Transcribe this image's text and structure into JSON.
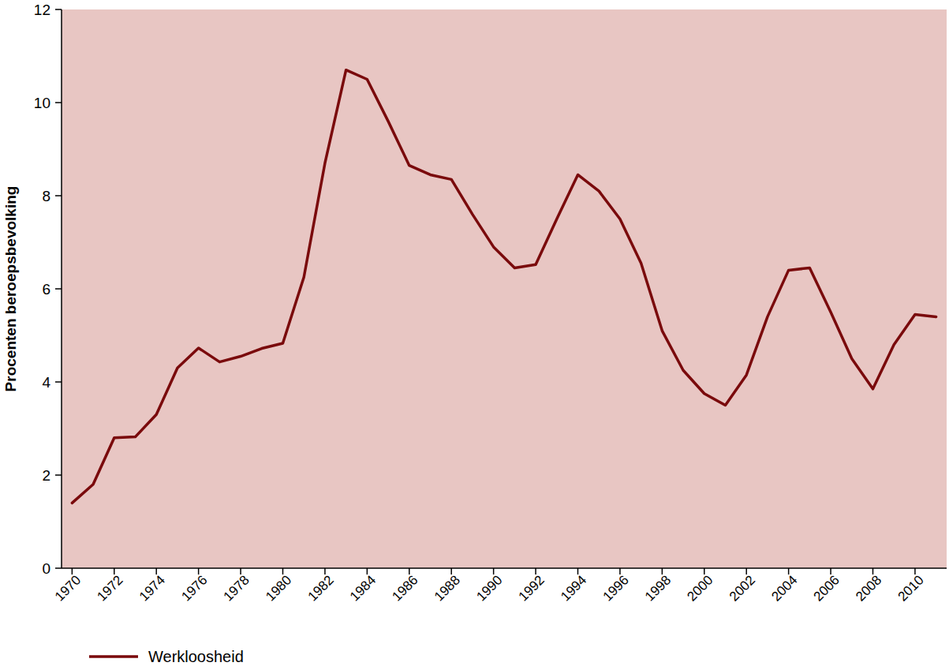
{
  "chart_data": {
    "type": "line",
    "y_label": "Procenten beroepsbevolking",
    "x": [
      1970,
      1971,
      1972,
      1973,
      1974,
      1975,
      1976,
      1977,
      1978,
      1979,
      1980,
      1981,
      1982,
      1983,
      1984,
      1985,
      1986,
      1987,
      1988,
      1989,
      1990,
      1991,
      1992,
      1993,
      1994,
      1995,
      1996,
      1997,
      1998,
      1999,
      2000,
      2001,
      2002,
      2003,
      2004,
      2005,
      2006,
      2007,
      2008,
      2009,
      2010,
      2011
    ],
    "series": [
      {
        "name": "Werkloosheid",
        "color": "#7a0a0c",
        "values": [
          1.4,
          1.8,
          2.8,
          2.82,
          3.3,
          4.3,
          4.73,
          4.43,
          4.55,
          4.72,
          4.83,
          6.25,
          8.7,
          10.7,
          10.5,
          9.6,
          8.65,
          8.45,
          8.35,
          7.6,
          6.9,
          6.45,
          6.52,
          7.5,
          8.45,
          8.1,
          7.5,
          6.55,
          5.1,
          4.25,
          3.75,
          3.5,
          4.15,
          5.4,
          6.4,
          6.45,
          5.5,
          4.5,
          3.85,
          4.8,
          5.45,
          5.4
        ]
      }
    ],
    "xlim": [
      1969.5,
      2011.5
    ],
    "xticks": [
      1970,
      1972,
      1974,
      1976,
      1978,
      1980,
      1982,
      1984,
      1986,
      1988,
      1990,
      1992,
      1994,
      1996,
      1998,
      2000,
      2002,
      2004,
      2006,
      2008,
      2010
    ],
    "ylim": [
      0,
      12
    ],
    "yticks": [
      0,
      2,
      4,
      6,
      8,
      10,
      12
    ],
    "grid": false,
    "legend": "bottom"
  }
}
